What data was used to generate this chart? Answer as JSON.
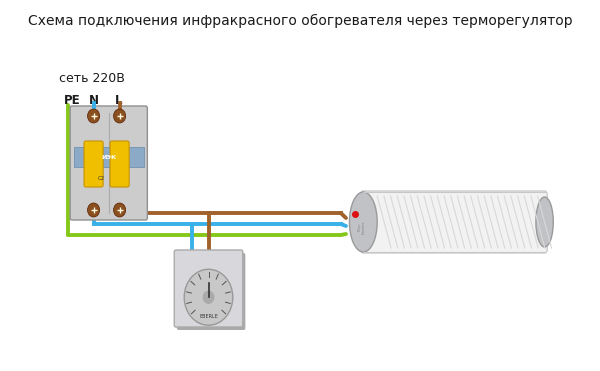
{
  "title": "Схема подключения инфракрасного обогревателя через терморегулятор",
  "label_network": "сеть 220В",
  "label_PE": "PE",
  "label_N": "N",
  "label_L": "L",
  "color_PE": "#86C81A",
  "color_N": "#38B0E8",
  "color_L": "#A0622A",
  "bg_color": "#FFFFFF",
  "wire_lw": 2.8,
  "title_fontsize": 10,
  "label_fontsize": 9
}
